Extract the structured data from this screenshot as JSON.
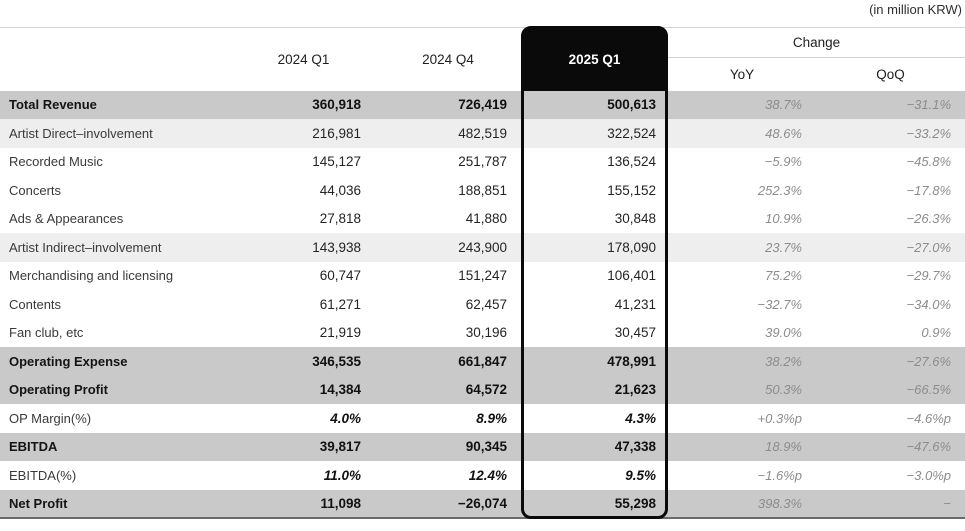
{
  "note": "(in million KRW)",
  "table": {
    "header": {
      "q1_2024": "2024 Q1",
      "q4_2024": "2024 Q4",
      "q1_2025": "2025 Q1",
      "change": "Change",
      "yoy": "YoY",
      "qoq": "QoQ"
    },
    "rows": [
      {
        "style": "total",
        "label": "Total Revenue",
        "q1_2024": "360,918",
        "q4_2024": "726,419",
        "q1_2025": "500,613",
        "yoy": "38.7%",
        "qoq": "−31.1%"
      },
      {
        "style": "sub",
        "label": "Artist Direct–involvement",
        "q1_2024": "216,981",
        "q4_2024": "482,519",
        "q1_2025": "322,524",
        "yoy": "48.6%",
        "qoq": "−33.2%"
      },
      {
        "style": "plain",
        "label": "Recorded Music",
        "q1_2024": "145,127",
        "q4_2024": "251,787",
        "q1_2025": "136,524",
        "yoy": "−5.9%",
        "qoq": "−45.8%"
      },
      {
        "style": "plain",
        "label": "Concerts",
        "q1_2024": "44,036",
        "q4_2024": "188,851",
        "q1_2025": "155,152",
        "yoy": "252.3%",
        "qoq": "−17.8%"
      },
      {
        "style": "plain",
        "label": "Ads & Appearances",
        "q1_2024": "27,818",
        "q4_2024": "41,880",
        "q1_2025": "30,848",
        "yoy": "10.9%",
        "qoq": "−26.3%"
      },
      {
        "style": "sub",
        "label": "Artist Indirect–involvement",
        "q1_2024": "143,938",
        "q4_2024": "243,900",
        "q1_2025": "178,090",
        "yoy": "23.7%",
        "qoq": "−27.0%"
      },
      {
        "style": "plain",
        "label": "Merchandising and licensing",
        "q1_2024": "60,747",
        "q4_2024": "151,247",
        "q1_2025": "106,401",
        "yoy": "75.2%",
        "qoq": "−29.7%"
      },
      {
        "style": "plain",
        "label": "Contents",
        "q1_2024": "61,271",
        "q4_2024": "62,457",
        "q1_2025": "41,231",
        "yoy": "−32.7%",
        "qoq": "−34.0%"
      },
      {
        "style": "plain",
        "label": "Fan club, etc",
        "q1_2024": "21,919",
        "q4_2024": "30,196",
        "q1_2025": "30,457",
        "yoy": "39.0%",
        "qoq": "0.9%"
      },
      {
        "style": "total",
        "label": "Operating Expense",
        "q1_2024": "346,535",
        "q4_2024": "661,847",
        "q1_2025": "478,991",
        "yoy": "38.2%",
        "qoq": "−27.6%"
      },
      {
        "style": "total",
        "label": "Operating Profit",
        "q1_2024": "14,384",
        "q4_2024": "64,572",
        "q1_2025": "21,623",
        "yoy": "50.3%",
        "qoq": "−66.5%"
      },
      {
        "style": "pct",
        "label": "OP Margin(%)",
        "q1_2024": "4.0%",
        "q4_2024": "8.9%",
        "q1_2025": "4.3%",
        "yoy": "+0.3%p",
        "qoq": "−4.6%p"
      },
      {
        "style": "total",
        "label": "EBITDA",
        "q1_2024": "39,817",
        "q4_2024": "90,345",
        "q1_2025": "47,338",
        "yoy": "18.9%",
        "qoq": "−47.6%"
      },
      {
        "style": "pct",
        "label": "EBITDA(%)",
        "q1_2024": "11.0%",
        "q4_2024": "12.4%",
        "q1_2025": "9.5%",
        "yoy": "−1.6%p",
        "qoq": "−3.0%p"
      },
      {
        "style": "total",
        "label": "Net Profit",
        "q1_2024": "11,098",
        "q4_2024": "−26,074",
        "q1_2025": "55,298",
        "yoy": "398.3%",
        "qoq": "−"
      }
    ]
  },
  "colors": {
    "highlight_border": "#0a0a0a",
    "row_dark": "#c9c9c9",
    "row_light": "#eeeeee",
    "change_text": "#8c8c8c"
  }
}
